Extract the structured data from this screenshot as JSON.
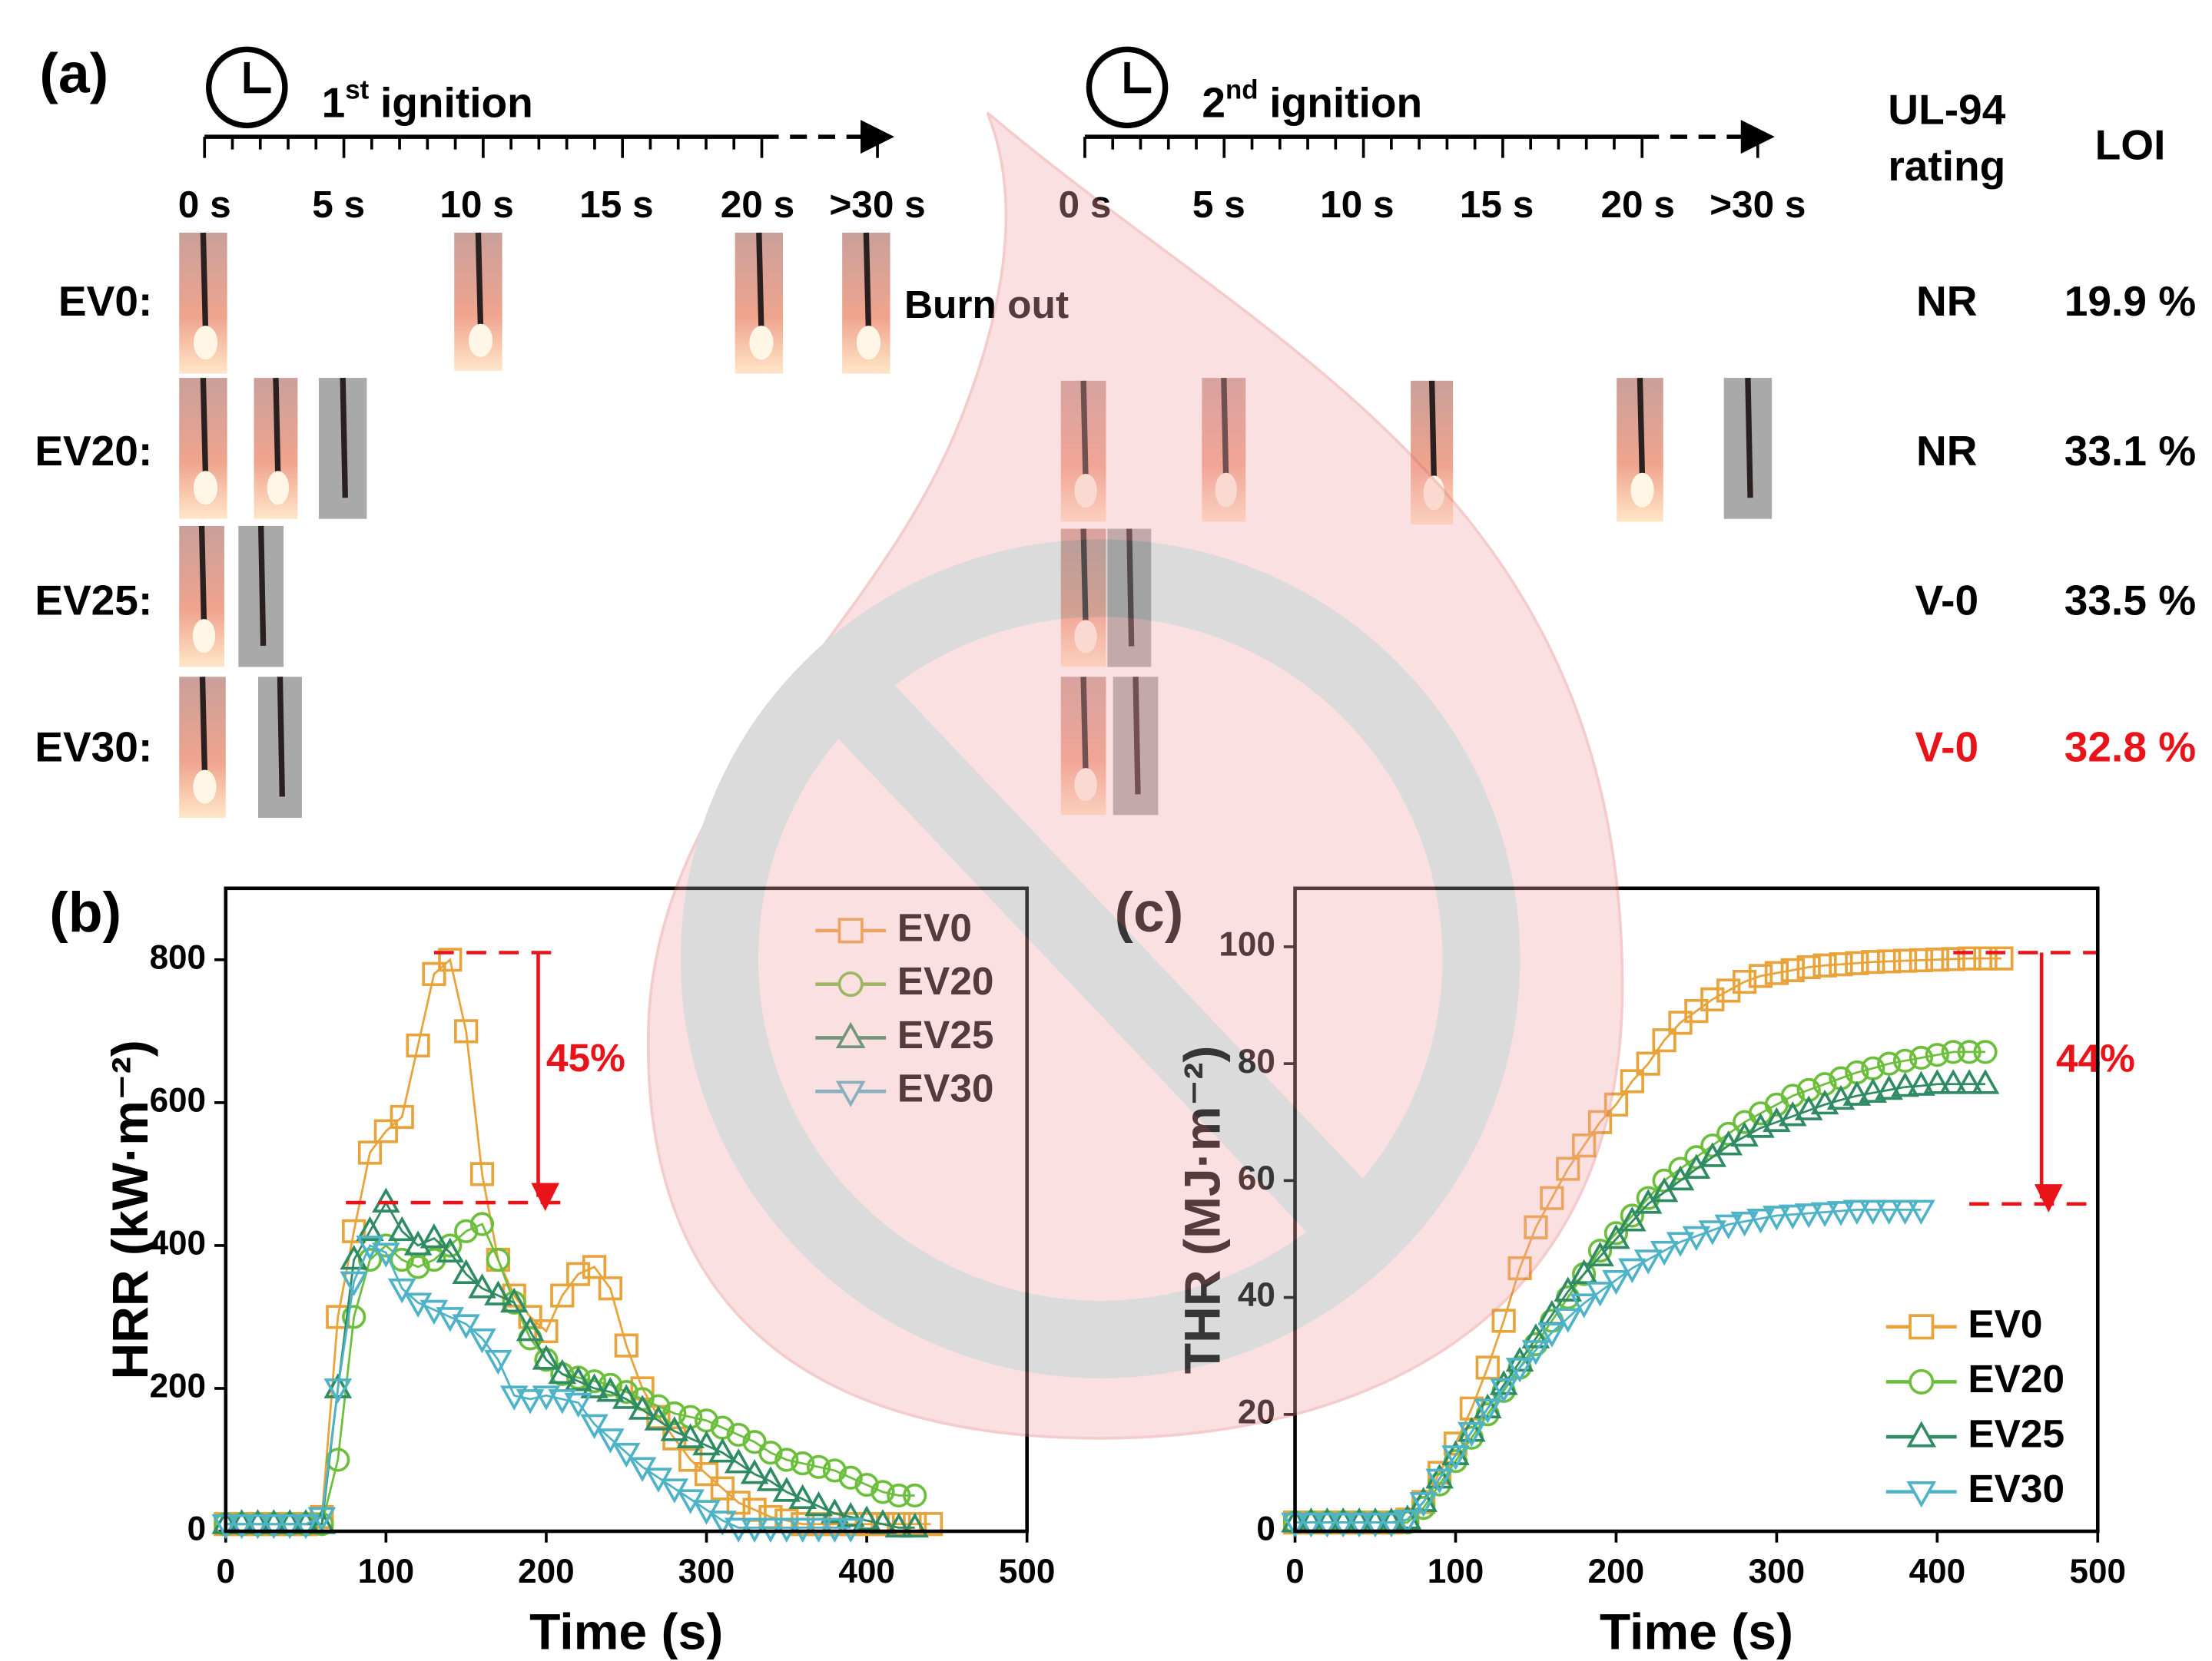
{
  "panel_a": {
    "label": "(a)",
    "ignitions": [
      {
        "ordinal": "1",
        "suffix": "st",
        "label": "ignition",
        "ticks": [
          "0 s",
          "5 s",
          "10 s",
          "15 s",
          "20 s",
          ">30 s"
        ]
      },
      {
        "ordinal": "2",
        "suffix": "nd",
        "label": "ignition",
        "ticks": [
          "0 s",
          "5 s",
          "10 s",
          "15 s",
          "20 s",
          ">30 s"
        ]
      }
    ],
    "note": "Burn out",
    "headers": {
      "rating": [
        "UL-94",
        "rating"
      ],
      "loi": "LOI"
    },
    "rows": [
      {
        "name": "EV0:",
        "rating": "NR",
        "loi": "19.9 %",
        "color": "#000000"
      },
      {
        "name": "EV20:",
        "rating": "NR",
        "loi": "33.1 %",
        "color": "#000000"
      },
      {
        "name": "EV25:",
        "rating": "V-0",
        "loi": "33.5 %",
        "color": "#000000"
      },
      {
        "name": "EV30:",
        "rating": "V-0",
        "loi": "32.8 %",
        "color": "#e8141a"
      }
    ]
  },
  "chart_data": [
    {
      "type": "line",
      "label": "(b)",
      "xlabel": "Time (s)",
      "ylabel": "HRR (kW·m⁻²)",
      "x": [
        0,
        10,
        20,
        30,
        40,
        50,
        60,
        70,
        80,
        90,
        100,
        110,
        120,
        130,
        140,
        150,
        160,
        170,
        180,
        190,
        200,
        210,
        220,
        230,
        240,
        250,
        260,
        270,
        280,
        290,
        300,
        310,
        320,
        330,
        340,
        350,
        360,
        370,
        380,
        390,
        400,
        410,
        420,
        430,
        440
      ],
      "series": [
        {
          "name": "EV0",
          "color": "#e8a33a",
          "marker": "square",
          "values": [
            10,
            10,
            10,
            10,
            10,
            10,
            20,
            300,
            420,
            530,
            560,
            580,
            680,
            780,
            800,
            700,
            500,
            380,
            330,
            300,
            280,
            330,
            360,
            370,
            340,
            260,
            200,
            160,
            130,
            100,
            80,
            60,
            40,
            30,
            20,
            15,
            10,
            10,
            10,
            10,
            10,
            10,
            10,
            10,
            10
          ]
        },
        {
          "name": "EV20",
          "color": "#6cbf3c",
          "marker": "circle",
          "values": [
            10,
            10,
            10,
            10,
            10,
            10,
            10,
            100,
            300,
            380,
            400,
            380,
            370,
            380,
            400,
            420,
            430,
            380,
            320,
            270,
            240,
            220,
            215,
            210,
            205,
            195,
            185,
            175,
            165,
            160,
            155,
            145,
            135,
            125,
            110,
            100,
            95,
            90,
            85,
            75,
            65,
            55,
            50,
            50,
            null
          ]
        },
        {
          "name": "EV25",
          "color": "#2e8b64",
          "marker": "triangle-up",
          "values": [
            10,
            10,
            10,
            10,
            10,
            10,
            10,
            200,
            380,
            420,
            460,
            420,
            400,
            410,
            390,
            360,
            340,
            330,
            320,
            280,
            240,
            220,
            210,
            200,
            195,
            185,
            170,
            155,
            140,
            130,
            120,
            110,
            95,
            80,
            70,
            55,
            45,
            35,
            25,
            20,
            15,
            10,
            5,
            5,
            null
          ]
        },
        {
          "name": "EV30",
          "color": "#4fb3c8",
          "marker": "triangle-down",
          "values": [
            10,
            10,
            10,
            10,
            10,
            10,
            20,
            200,
            350,
            400,
            390,
            340,
            320,
            310,
            300,
            290,
            270,
            240,
            190,
            185,
            190,
            185,
            180,
            150,
            130,
            110,
            90,
            75,
            60,
            45,
            30,
            15,
            5,
            5,
            5,
            5,
            5,
            5,
            5,
            5,
            null,
            null,
            null,
            null,
            null
          ]
        }
      ],
      "xlim": [
        0,
        500
      ],
      "ylim": [
        0,
        900
      ],
      "xticks": [
        0,
        100,
        200,
        300,
        400,
        500
      ],
      "yticks": [
        0,
        200,
        400,
        600,
        800
      ],
      "legend": "upper right",
      "annotation": {
        "text": "45%",
        "lines": [
          810,
          460
        ],
        "color": "#e8141a"
      }
    },
    {
      "type": "line",
      "label": "(c)",
      "xlabel": "Time (s)",
      "ylabel": "THR (MJ·m⁻²)",
      "x": [
        0,
        10,
        20,
        30,
        40,
        50,
        60,
        70,
        80,
        90,
        100,
        110,
        120,
        130,
        140,
        150,
        160,
        170,
        180,
        190,
        200,
        210,
        220,
        230,
        240,
        250,
        260,
        270,
        280,
        290,
        300,
        310,
        320,
        330,
        340,
        350,
        360,
        370,
        380,
        390,
        400,
        410,
        420,
        430,
        440
      ],
      "series": [
        {
          "name": "EV0",
          "color": "#e8a33a",
          "marker": "square",
          "values": [
            1.5,
            1.5,
            1.5,
            1.5,
            1.5,
            1.5,
            1.5,
            2,
            5,
            10,
            15,
            21,
            28,
            36,
            45,
            52,
            57,
            62,
            66,
            70,
            73,
            77,
            80,
            84,
            87,
            89,
            91,
            92.5,
            94,
            95,
            95.5,
            96,
            96.5,
            96.8,
            97,
            97.2,
            97.4,
            97.5,
            97.6,
            97.7,
            97.8,
            97.9,
            98,
            98,
            98
          ]
        },
        {
          "name": "EV20",
          "color": "#6cbf3c",
          "marker": "circle",
          "values": [
            1.5,
            1.5,
            1.5,
            1.5,
            1.5,
            1.5,
            1.5,
            1.5,
            4,
            8,
            12,
            16,
            20,
            24,
            28,
            32,
            36,
            40,
            44,
            48,
            51,
            54,
            57,
            60,
            62,
            64,
            66,
            68,
            70,
            71.5,
            73,
            74.5,
            75.5,
            76.5,
            77.5,
            78.5,
            79.2,
            80,
            80.5,
            81,
            81.5,
            82,
            82,
            82,
            null
          ]
        },
        {
          "name": "EV25",
          "color": "#2e8b64",
          "marker": "triangle-up",
          "values": [
            1.5,
            1.5,
            1.5,
            1.5,
            1.5,
            1.5,
            1.5,
            2,
            5,
            9,
            13,
            17,
            21,
            25,
            29,
            33,
            37,
            41,
            44,
            47,
            50,
            53,
            56,
            58,
            60,
            62,
            64,
            66,
            67.5,
            69,
            70,
            71,
            72,
            73,
            73.8,
            74.5,
            75,
            75.5,
            76,
            76.2,
            76.5,
            76.5,
            76.5,
            76.5,
            null
          ]
        },
        {
          "name": "EV30",
          "color": "#4fb3c8",
          "marker": "triangle-down",
          "values": [
            1.5,
            1.5,
            1.5,
            1.5,
            1.5,
            1.5,
            1.5,
            2,
            5,
            9,
            13,
            17,
            21,
            24.5,
            28,
            31,
            34,
            36.5,
            39,
            41,
            43,
            45,
            46.5,
            48,
            49.5,
            50.5,
            51.5,
            52.5,
            53,
            53.5,
            54,
            54.2,
            54.4,
            54.6,
            54.8,
            55,
            55,
            55,
            55,
            55,
            null,
            null,
            null,
            null,
            null
          ]
        }
      ],
      "xlim": [
        0,
        500
      ],
      "ylim": [
        0,
        110
      ],
      "xticks": [
        0,
        100,
        200,
        300,
        400,
        500
      ],
      "yticks": [
        0,
        20,
        40,
        60,
        80,
        100
      ],
      "legend": "lower right",
      "annotation": {
        "text": "44%",
        "lines": [
          99,
          56
        ],
        "color": "#e8141a"
      }
    }
  ]
}
